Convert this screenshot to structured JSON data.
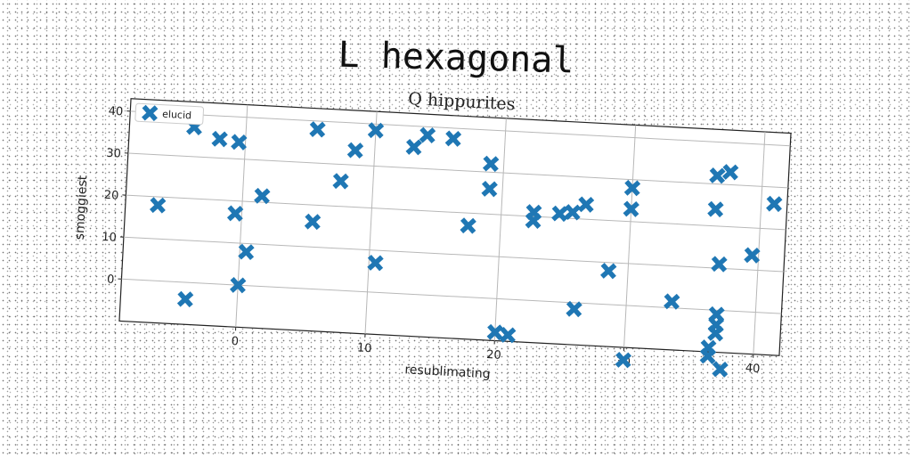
{
  "title": "L hexagonal",
  "chart_data": {
    "type": "scatter",
    "title": "Q hippurites",
    "xlabel": "resublimating",
    "ylabel": "smoggiest",
    "xlim": [
      -9,
      42
    ],
    "ylim": [
      -10,
      43
    ],
    "xticks": [
      0,
      10,
      20,
      30,
      40
    ],
    "yticks": [
      0,
      10,
      20,
      30,
      40
    ],
    "grid": true,
    "legend_position": "top-left",
    "series": [
      {
        "name": "elucid",
        "color": "#1f77b4",
        "marker": "X",
        "points": [
          [
            -6.5,
            18
          ],
          [
            -4,
            37
          ],
          [
            -2,
            34.5
          ],
          [
            -0.5,
            34
          ],
          [
            -0.5,
            17
          ],
          [
            0.5,
            8
          ],
          [
            0,
            0
          ],
          [
            1.5,
            21.5
          ],
          [
            -4,
            -4
          ],
          [
            5.5,
            38
          ],
          [
            5.5,
            16
          ],
          [
            7.5,
            26
          ],
          [
            8.5,
            33.5
          ],
          [
            10,
            38.5
          ],
          [
            10.5,
            7
          ],
          [
            13,
            35
          ],
          [
            14,
            38
          ],
          [
            16,
            37.5
          ],
          [
            17.5,
            17
          ],
          [
            19,
            32
          ],
          [
            19,
            26
          ],
          [
            20,
            -8
          ],
          [
            21,
            -8.5
          ],
          [
            22.5,
            21
          ],
          [
            22.5,
            19
          ],
          [
            24.5,
            21
          ],
          [
            25.5,
            21.5
          ],
          [
            26.5,
            23.5
          ],
          [
            26,
            -1.5
          ],
          [
            28.5,
            8
          ],
          [
            30,
            28
          ],
          [
            30,
            23
          ],
          [
            30,
            -13
          ],
          [
            33.5,
            1.5
          ],
          [
            36.5,
            32
          ],
          [
            36.5,
            24
          ],
          [
            37.5,
            33
          ],
          [
            37,
            11
          ],
          [
            37,
            -1
          ],
          [
            37,
            -3.5
          ],
          [
            37,
            -5.5
          ],
          [
            36.5,
            -9
          ],
          [
            36.5,
            -11
          ],
          [
            37.5,
            -14
          ],
          [
            39.5,
            13.5
          ],
          [
            41,
            26
          ]
        ]
      }
    ]
  }
}
